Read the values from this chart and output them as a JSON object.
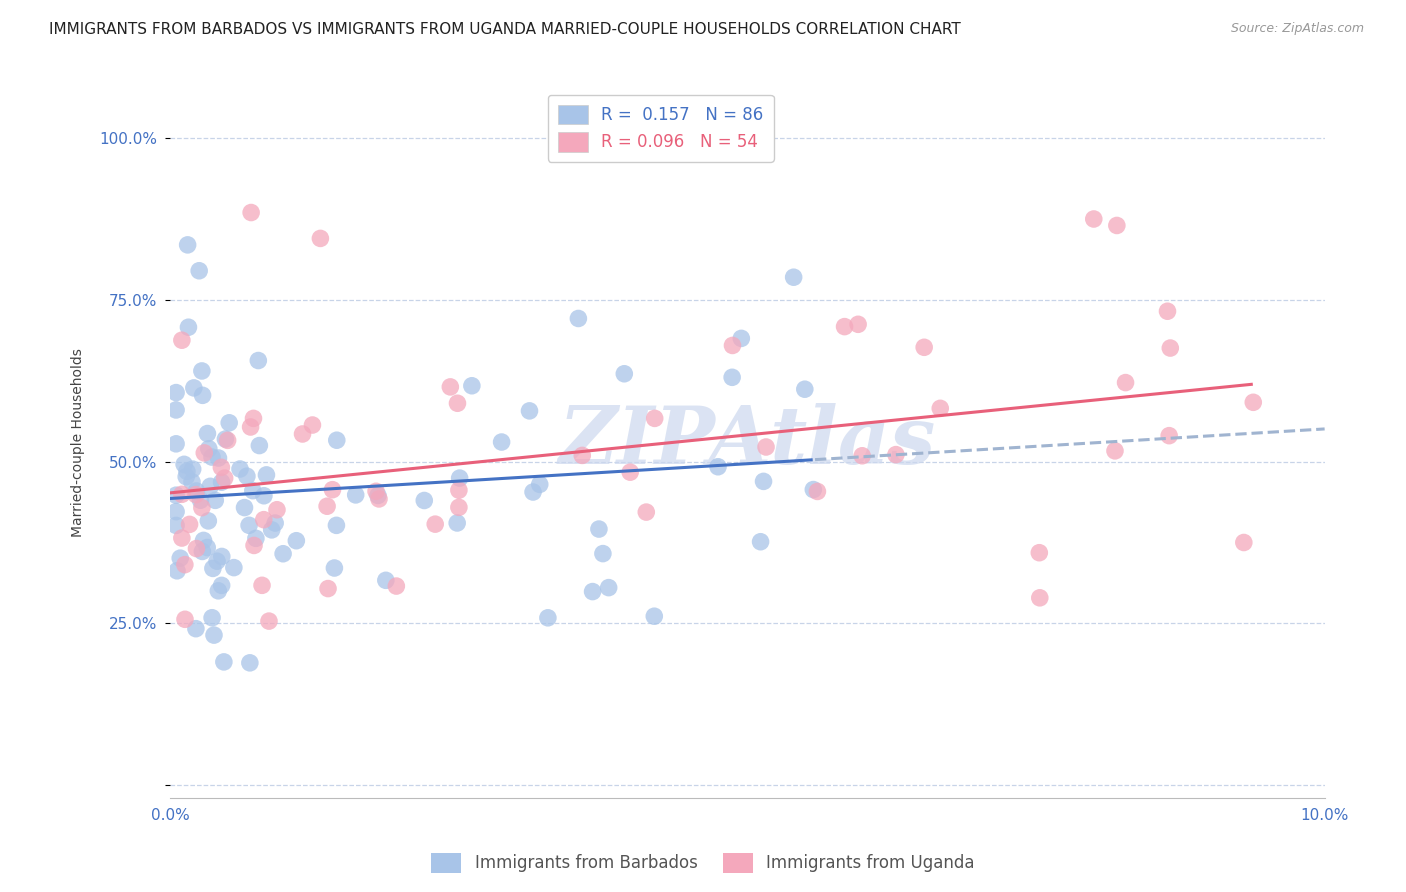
{
  "title": "IMMIGRANTS FROM BARBADOS VS IMMIGRANTS FROM UGANDA MARRIED-COUPLE HOUSEHOLDS CORRELATION CHART",
  "source": "Source: ZipAtlas.com",
  "ylabel": "Married-couple Households",
  "xlim": [
    0.0,
    0.1
  ],
  "ylim": [
    -0.02,
    1.08
  ],
  "yticks": [
    0.0,
    0.25,
    0.5,
    0.75,
    1.0
  ],
  "ytick_labels": [
    "",
    "25.0%",
    "50.0%",
    "75.0%",
    "100.0%"
  ],
  "xticks": [
    0.0,
    0.02,
    0.04,
    0.06,
    0.08,
    0.1
  ],
  "xtick_labels": [
    "0.0%",
    "",
    "",
    "",
    "",
    "10.0%"
  ],
  "barbados_R": 0.157,
  "barbados_N": 86,
  "uganda_R": 0.096,
  "uganda_N": 54,
  "barbados_color": "#a8c4e8",
  "uganda_color": "#f4a8bc",
  "barbados_line_color": "#4472c4",
  "uganda_line_color": "#e8607a",
  "trend_line_dashed_color": "#a0b4d0",
  "watermark": "ZIPAtlas",
  "watermark_color": "#ccd8ee",
  "legend_label_barbados": "Immigrants from Barbados",
  "legend_label_uganda": "Immigrants from Uganda",
  "background_color": "#ffffff",
  "grid_color": "#c8d4e8",
  "title_fontsize": 11,
  "axis_label_fontsize": 10,
  "tick_fontsize": 11,
  "legend_fontsize": 12,
  "tick_color": "#4472c4"
}
